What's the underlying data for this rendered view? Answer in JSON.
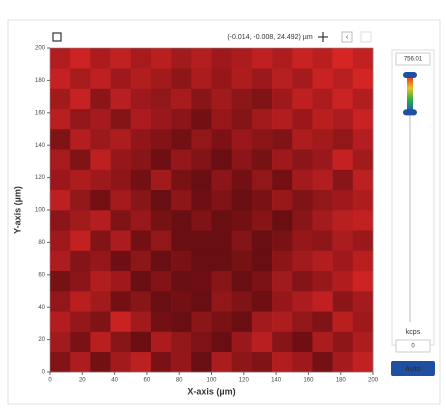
{
  "toolbar": {
    "coordinates": "(-0.014, -0.008, 24.492) µm"
  },
  "chart_data": {
    "type": "heatmap",
    "xlabel": "X-axis (µm)",
    "ylabel": "Y-axis (µm)",
    "xlim": [
      0,
      200
    ],
    "ylim": [
      0,
      200
    ],
    "xticks": [
      0,
      20,
      40,
      60,
      80,
      100,
      120,
      140,
      160,
      180,
      200
    ],
    "yticks": [
      0,
      20,
      40,
      60,
      80,
      100,
      120,
      140,
      160,
      180,
      200
    ],
    "z": [
      [
        662,
        701,
        648,
        690,
        715,
        655,
        680,
        640,
        698,
        672,
        660,
        705,
        688,
        651,
        694,
        720
      ],
      [
        690,
        655,
        712,
        668,
        642,
        700,
        676,
        659,
        630,
        684,
        711,
        667,
        645,
        699,
        673,
        702
      ],
      [
        705,
        680,
        660,
        725,
        690,
        648,
        622,
        670,
        655,
        641,
        690,
        702,
        676,
        660,
        712,
        688
      ],
      [
        678,
        712,
        690,
        650,
        668,
        633,
        650,
        628,
        676,
        660,
        645,
        680,
        699,
        718,
        671,
        694
      ],
      [
        652,
        670,
        705,
        688,
        640,
        662,
        615,
        645,
        668,
        632,
        658,
        690,
        664,
        682,
        704,
        730
      ],
      [
        701,
        664,
        680,
        645,
        672,
        628,
        655,
        638,
        610,
        652,
        640,
        671,
        690,
        705,
        688,
        712
      ],
      [
        688,
        720,
        662,
        698,
        650,
        676,
        642,
        618,
        640,
        664,
        628,
        655,
        680,
        672,
        699,
        684
      ],
      [
        670,
        690,
        708,
        660,
        683,
        652,
        636,
        660,
        625,
        648,
        667,
        640,
        668,
        693,
        710,
        720
      ],
      [
        715,
        676,
        650,
        694,
        668,
        640,
        672,
        645,
        660,
        630,
        655,
        682,
        660,
        676,
        688,
        702
      ],
      [
        684,
        702,
        688,
        672,
        650,
        690,
        655,
        632,
        670,
        648,
        676,
        650,
        692,
        705,
        668,
        715
      ],
      [
        696,
        660,
        715,
        680,
        668,
        645,
        680,
        662,
        640,
        670,
        652,
        688,
        670,
        684,
        722,
        690
      ],
      [
        660,
        708,
        686,
        702,
        675,
        662,
        648,
        676,
        658,
        684,
        671,
        660,
        702,
        690,
        676,
        708
      ],
      [
        712,
        678,
        694,
        665,
        700,
        684,
        670,
        650,
        682,
        665,
        690,
        705,
        684,
        712,
        698,
        725
      ],
      [
        690,
        724,
        670,
        710,
        688,
        676,
        695,
        668,
        690,
        672,
        660,
        688,
        716,
        700,
        728,
        705
      ],
      [
        722,
        695,
        716,
        688,
        705,
        690,
        672,
        698,
        680,
        702,
        686,
        710,
        694,
        725,
        710,
        736
      ],
      [
        705,
        730,
        700,
        720,
        696,
        712,
        690,
        706,
        688,
        700,
        718,
        702,
        726,
        712,
        738,
        720
      ]
    ],
    "colorbar": {
      "max": 756.01,
      "min": 0,
      "max_label": "756.01",
      "min_label": "0",
      "unit": "kcps",
      "clim": [
        640,
        750
      ]
    },
    "button": "Auto"
  }
}
